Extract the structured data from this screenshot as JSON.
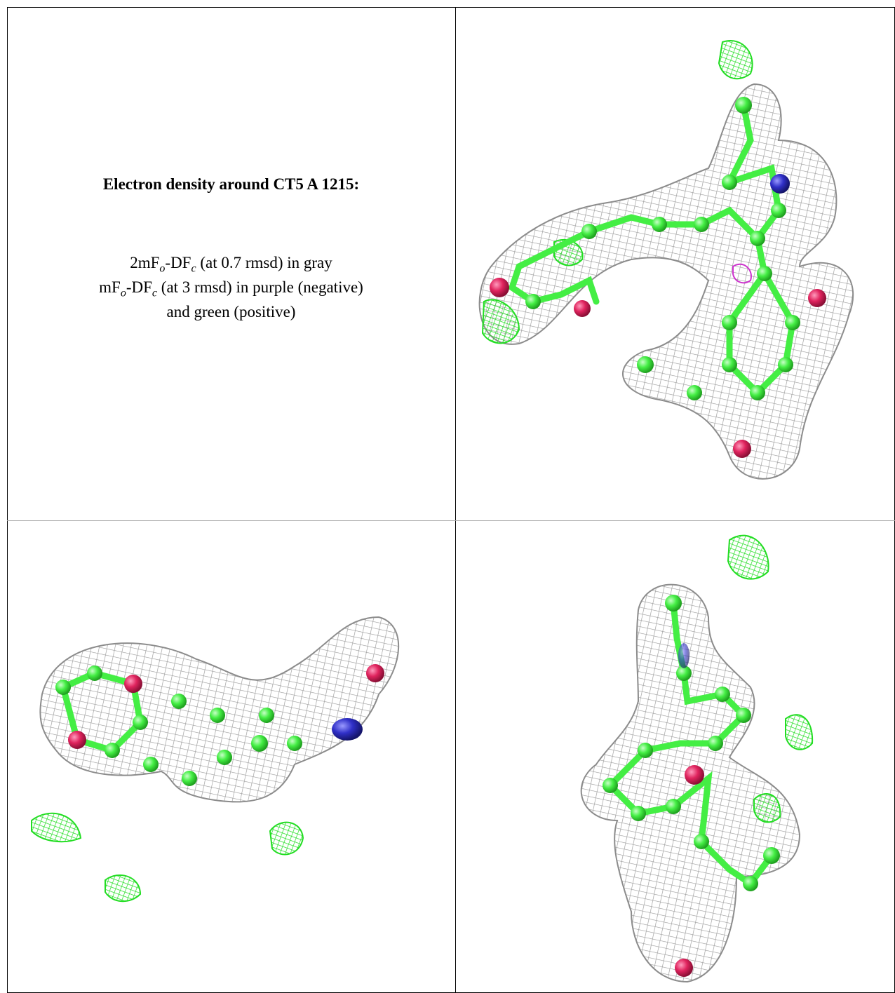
{
  "caption": {
    "title": "Electron density around CT5 A 1215:",
    "line1": [
      "2mF",
      "o",
      "-DF",
      "c",
      " (at 0.7 rmsd) in gray"
    ],
    "line2": [
      "mF",
      "o",
      "-DF",
      "c",
      " (at 3 rmsd) in purple (negative)"
    ],
    "line3": "and green (positive)"
  }
}
